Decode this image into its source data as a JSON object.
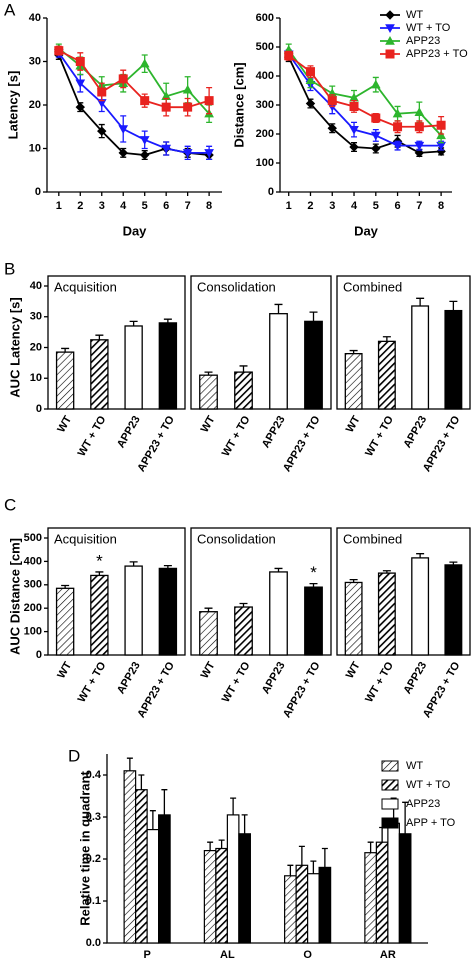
{
  "chart_data": [
    {
      "type": "line",
      "panel": "A",
      "y_label": "Latency [s]",
      "x_label": "Day",
      "x": [
        1,
        2,
        3,
        4,
        5,
        6,
        7,
        8
      ],
      "xlim": [
        0.45,
        8.6
      ],
      "xticks": [
        1,
        2,
        3,
        4,
        5,
        6,
        7,
        8
      ],
      "ylim": [
        0,
        40
      ],
      "yticks": [
        0,
        10,
        20,
        30,
        40
      ],
      "series": [
        {
          "name": "WT",
          "color": "#000000",
          "marker": "diamond",
          "values": [
            31.5,
            19.5,
            14,
            9,
            8.5,
            10,
            9,
            8.5
          ],
          "errors": [
            1,
            1,
            1.5,
            1,
            1,
            1.5,
            1,
            1
          ]
        },
        {
          "name": "WT + TO",
          "color": "#1a1aff",
          "marker": "triangle-down",
          "values": [
            32,
            25,
            20.5,
            14.5,
            12,
            10,
            9,
            9
          ],
          "errors": [
            1,
            2,
            2,
            3,
            2,
            1.5,
            1.5,
            1.5
          ]
        },
        {
          "name": "APP23",
          "color": "#2db52d",
          "marker": "triangle-up",
          "values": [
            33,
            29,
            24.5,
            25,
            29.5,
            22,
            23.5,
            18
          ],
          "errors": [
            1,
            2,
            2,
            2,
            2,
            3,
            3,
            2
          ]
        },
        {
          "name": "APP23 + TO",
          "color": "#e8231f",
          "marker": "square",
          "values": [
            32.5,
            30,
            23,
            26,
            21,
            19.5,
            19.5,
            21
          ],
          "errors": [
            1,
            2,
            2,
            2,
            1.5,
            2,
            2,
            3
          ]
        }
      ]
    },
    {
      "type": "line",
      "y_label": "Distance [cm]",
      "x_label": "Day",
      "legend": "upper right",
      "x": [
        1,
        2,
        3,
        4,
        5,
        6,
        7,
        8
      ],
      "xlim": [
        0.6,
        8.5
      ],
      "xticks": [
        1,
        2,
        3,
        4,
        5,
        6,
        7,
        8
      ],
      "ylim": [
        0,
        600
      ],
      "yticks": [
        0,
        100,
        200,
        300,
        400,
        500,
        600
      ],
      "series": [
        {
          "name": "WT",
          "color": "#000000",
          "marker": "diamond",
          "values": [
            465,
            305,
            220,
            155,
            150,
            175,
            135,
            140
          ],
          "errors": [
            15,
            15,
            15,
            15,
            15,
            20,
            12,
            12
          ]
        },
        {
          "name": "WT + TO",
          "color": "#1a1aff",
          "marker": "triangle-down",
          "values": [
            475,
            370,
            295,
            215,
            195,
            160,
            160,
            160
          ],
          "errors": [
            15,
            20,
            25,
            25,
            20,
            15,
            15,
            15
          ]
        },
        {
          "name": "APP23",
          "color": "#2db52d",
          "marker": "triangle-up",
          "values": [
            490,
            385,
            340,
            325,
            370,
            270,
            275,
            195
          ],
          "errors": [
            20,
            25,
            25,
            25,
            25,
            25,
            35,
            25
          ]
        },
        {
          "name": "APP23 + TO",
          "color": "#e8231f",
          "marker": "square",
          "values": [
            470,
            415,
            315,
            295,
            255,
            225,
            225,
            230
          ],
          "errors": [
            15,
            20,
            20,
            20,
            15,
            20,
            20,
            30
          ]
        }
      ]
    },
    {
      "type": "bar",
      "panel": "B",
      "title": "Acquisition",
      "y_label": "AUC Latency [s]",
      "categories": [
        "WT",
        "WT + TO",
        "APP23",
        "APP23 + TO"
      ],
      "values": [
        18.5,
        22.5,
        27,
        28
      ],
      "errors": [
        1.2,
        1.5,
        1.5,
        1.2
      ],
      "patterns": [
        "hatch",
        "hatch-dense",
        "white",
        "black"
      ],
      "ylim": [
        0,
        40
      ],
      "yticks": [
        0,
        10,
        20,
        30,
        40
      ]
    },
    {
      "type": "bar",
      "title": "Consolidation",
      "categories": [
        "WT",
        "WT + TO",
        "APP23",
        "APP23 + TO"
      ],
      "values": [
        11,
        12,
        31,
        28.5
      ],
      "errors": [
        1,
        2,
        3,
        3
      ],
      "patterns": [
        "hatch",
        "hatch-dense",
        "white",
        "black"
      ],
      "ylim": [
        0,
        40
      ]
    },
    {
      "type": "bar",
      "title": "Combined",
      "categories": [
        "WT",
        "WT + TO",
        "APP23",
        "APP23 + TO"
      ],
      "values": [
        18,
        22,
        33.5,
        32
      ],
      "errors": [
        1,
        1.5,
        2.5,
        3
      ],
      "patterns": [
        "hatch",
        "hatch-dense",
        "white",
        "black"
      ],
      "ylim": [
        0,
        40
      ]
    },
    {
      "type": "bar",
      "panel": "C",
      "title": "Acquisition",
      "y_label": "AUC Distance [cm]",
      "categories": [
        "WT",
        "WT + TO",
        "APP23",
        "APP23 + TO"
      ],
      "values": [
        285,
        340,
        380,
        370
      ],
      "errors": [
        12,
        15,
        18,
        12
      ],
      "patterns": [
        "hatch",
        "hatch-dense",
        "white",
        "black"
      ],
      "ylim": [
        0,
        500
      ],
      "yticks": [
        0,
        100,
        200,
        300,
        400,
        500
      ],
      "annotations": [
        {
          "text": "*",
          "category": "WT + TO"
        }
      ]
    },
    {
      "type": "bar",
      "title": "Consolidation",
      "categories": [
        "WT",
        "WT + TO",
        "APP23",
        "APP23 + TO"
      ],
      "values": [
        185,
        205,
        355,
        290
      ],
      "errors": [
        15,
        15,
        15,
        15
      ],
      "patterns": [
        "hatch",
        "hatch-dense",
        "white",
        "black"
      ],
      "ylim": [
        0,
        500
      ],
      "annotations": [
        {
          "text": "*",
          "category": "APP23 + TO"
        }
      ]
    },
    {
      "type": "bar",
      "title": "Combined",
      "categories": [
        "WT",
        "WT + TO",
        "APP23",
        "APP23 + TO"
      ],
      "values": [
        310,
        350,
        415,
        385
      ],
      "errors": [
        12,
        10,
        18,
        12
      ],
      "patterns": [
        "hatch",
        "hatch-dense",
        "white",
        "black"
      ],
      "ylim": [
        0,
        500
      ]
    },
    {
      "type": "grouped_bar",
      "panel": "D",
      "y_label": "Relative time in quadrant",
      "legend": "upper right",
      "categories": [
        "P",
        "AL",
        "O",
        "AR"
      ],
      "ylim": [
        0,
        0.45
      ],
      "yticks": [
        {
          "value": 0,
          "label": "0.0"
        },
        0.1,
        0.2,
        0.3,
        0.4
      ],
      "series": [
        {
          "name": "WT",
          "pattern": "hatch",
          "values": [
            0.41,
            0.22,
            0.16,
            0.215
          ],
          "errors": [
            0.03,
            0.02,
            0.025,
            0.025
          ]
        },
        {
          "name": "WT + TO",
          "pattern": "hatch-dense",
          "values": [
            0.365,
            0.225,
            0.185,
            0.24
          ],
          "errors": [
            0.035,
            0.02,
            0.045,
            0.035
          ]
        },
        {
          "name": "APP23",
          "pattern": "white",
          "values": [
            0.27,
            0.305,
            0.165,
            0.285
          ],
          "errors": [
            0.045,
            0.04,
            0.03,
            0.06
          ]
        },
        {
          "name": "APP + TO",
          "pattern": "black",
          "values": [
            0.305,
            0.26,
            0.18,
            0.26
          ],
          "errors": [
            0.06,
            0.045,
            0.045,
            0.075
          ]
        }
      ]
    }
  ]
}
